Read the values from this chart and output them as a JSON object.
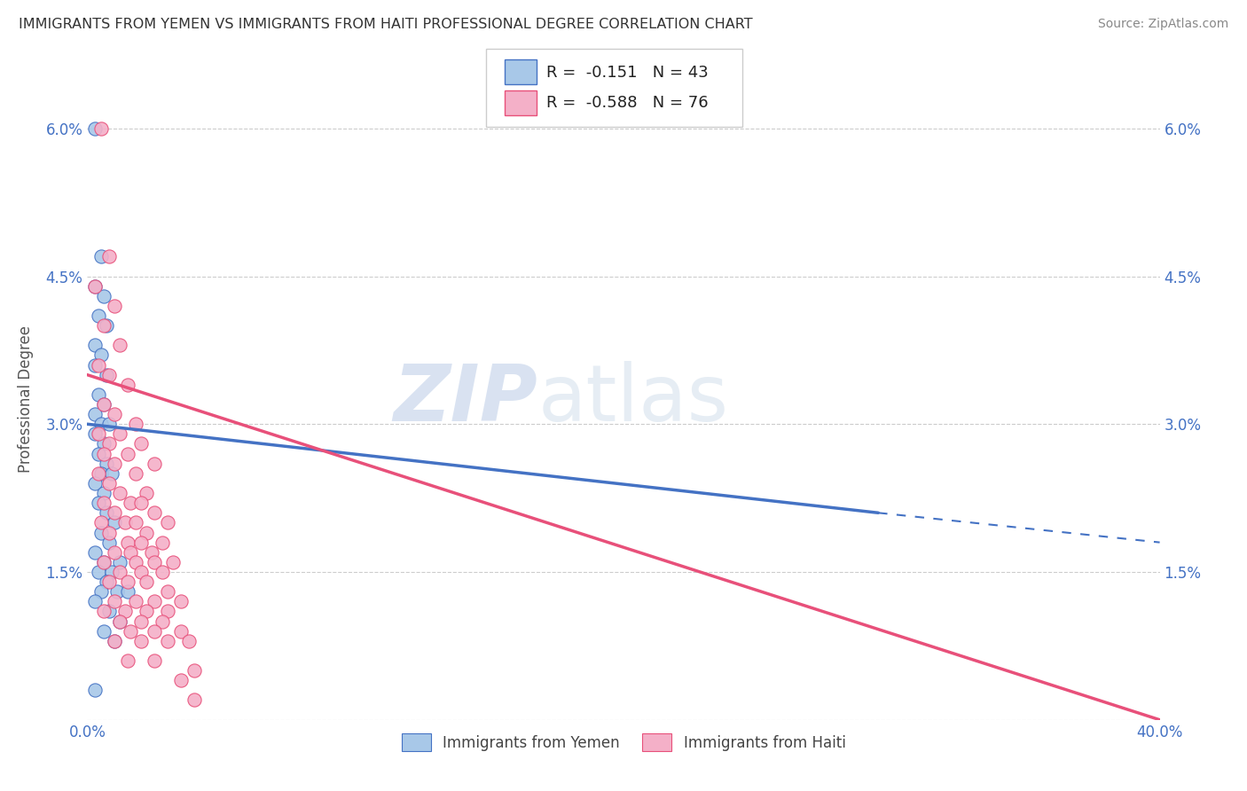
{
  "title": "IMMIGRANTS FROM YEMEN VS IMMIGRANTS FROM HAITI PROFESSIONAL DEGREE CORRELATION CHART",
  "source": "Source: ZipAtlas.com",
  "ylabel": "Professional Degree",
  "legend_label1": "Immigrants from Yemen",
  "legend_label2": "Immigrants from Haiti",
  "R1": -0.151,
  "N1": 43,
  "R2": -0.588,
  "N2": 76,
  "color_yemen": "#a8c8e8",
  "color_haiti": "#f4b0c8",
  "trendline_color_yemen": "#4472c4",
  "trendline_color_haiti": "#e8507a",
  "xlim": [
    0.0,
    0.4
  ],
  "ylim": [
    0.0,
    0.065
  ],
  "xticks": [
    0.0,
    0.05,
    0.1,
    0.15,
    0.2,
    0.25,
    0.3,
    0.35,
    0.4
  ],
  "yticks": [
    0.0,
    0.015,
    0.03,
    0.045,
    0.06
  ],
  "watermark_zip": "ZIP",
  "watermark_atlas": "atlas",
  "background_color": "#ffffff",
  "scatter_yemen": [
    [
      0.003,
      0.06
    ],
    [
      0.005,
      0.047
    ],
    [
      0.003,
      0.044
    ],
    [
      0.006,
      0.043
    ],
    [
      0.004,
      0.041
    ],
    [
      0.007,
      0.04
    ],
    [
      0.003,
      0.038
    ],
    [
      0.005,
      0.037
    ],
    [
      0.003,
      0.036
    ],
    [
      0.007,
      0.035
    ],
    [
      0.004,
      0.033
    ],
    [
      0.006,
      0.032
    ],
    [
      0.003,
      0.031
    ],
    [
      0.005,
      0.03
    ],
    [
      0.008,
      0.03
    ],
    [
      0.003,
      0.029
    ],
    [
      0.006,
      0.028
    ],
    [
      0.004,
      0.027
    ],
    [
      0.007,
      0.026
    ],
    [
      0.005,
      0.025
    ],
    [
      0.009,
      0.025
    ],
    [
      0.003,
      0.024
    ],
    [
      0.006,
      0.023
    ],
    [
      0.004,
      0.022
    ],
    [
      0.007,
      0.021
    ],
    [
      0.01,
      0.02
    ],
    [
      0.005,
      0.019
    ],
    [
      0.008,
      0.018
    ],
    [
      0.003,
      0.017
    ],
    [
      0.006,
      0.016
    ],
    [
      0.012,
      0.016
    ],
    [
      0.004,
      0.015
    ],
    [
      0.009,
      0.015
    ],
    [
      0.007,
      0.014
    ],
    [
      0.005,
      0.013
    ],
    [
      0.011,
      0.013
    ],
    [
      0.015,
      0.013
    ],
    [
      0.003,
      0.012
    ],
    [
      0.008,
      0.011
    ],
    [
      0.012,
      0.01
    ],
    [
      0.006,
      0.009
    ],
    [
      0.01,
      0.008
    ],
    [
      0.003,
      0.003
    ]
  ],
  "scatter_haiti": [
    [
      0.005,
      0.06
    ],
    [
      0.008,
      0.047
    ],
    [
      0.003,
      0.044
    ],
    [
      0.01,
      0.042
    ],
    [
      0.006,
      0.04
    ],
    [
      0.012,
      0.038
    ],
    [
      0.004,
      0.036
    ],
    [
      0.008,
      0.035
    ],
    [
      0.015,
      0.034
    ],
    [
      0.006,
      0.032
    ],
    [
      0.01,
      0.031
    ],
    [
      0.018,
      0.03
    ],
    [
      0.004,
      0.029
    ],
    [
      0.012,
      0.029
    ],
    [
      0.008,
      0.028
    ],
    [
      0.02,
      0.028
    ],
    [
      0.006,
      0.027
    ],
    [
      0.015,
      0.027
    ],
    [
      0.01,
      0.026
    ],
    [
      0.025,
      0.026
    ],
    [
      0.004,
      0.025
    ],
    [
      0.018,
      0.025
    ],
    [
      0.008,
      0.024
    ],
    [
      0.012,
      0.023
    ],
    [
      0.022,
      0.023
    ],
    [
      0.006,
      0.022
    ],
    [
      0.016,
      0.022
    ],
    [
      0.02,
      0.022
    ],
    [
      0.01,
      0.021
    ],
    [
      0.025,
      0.021
    ],
    [
      0.005,
      0.02
    ],
    [
      0.014,
      0.02
    ],
    [
      0.018,
      0.02
    ],
    [
      0.03,
      0.02
    ],
    [
      0.008,
      0.019
    ],
    [
      0.022,
      0.019
    ],
    [
      0.015,
      0.018
    ],
    [
      0.02,
      0.018
    ],
    [
      0.028,
      0.018
    ],
    [
      0.01,
      0.017
    ],
    [
      0.016,
      0.017
    ],
    [
      0.024,
      0.017
    ],
    [
      0.006,
      0.016
    ],
    [
      0.018,
      0.016
    ],
    [
      0.025,
      0.016
    ],
    [
      0.032,
      0.016
    ],
    [
      0.012,
      0.015
    ],
    [
      0.02,
      0.015
    ],
    [
      0.028,
      0.015
    ],
    [
      0.008,
      0.014
    ],
    [
      0.015,
      0.014
    ],
    [
      0.022,
      0.014
    ],
    [
      0.03,
      0.013
    ],
    [
      0.01,
      0.012
    ],
    [
      0.018,
      0.012
    ],
    [
      0.025,
      0.012
    ],
    [
      0.035,
      0.012
    ],
    [
      0.006,
      0.011
    ],
    [
      0.014,
      0.011
    ],
    [
      0.022,
      0.011
    ],
    [
      0.03,
      0.011
    ],
    [
      0.012,
      0.01
    ],
    [
      0.02,
      0.01
    ],
    [
      0.028,
      0.01
    ],
    [
      0.016,
      0.009
    ],
    [
      0.025,
      0.009
    ],
    [
      0.035,
      0.009
    ],
    [
      0.01,
      0.008
    ],
    [
      0.02,
      0.008
    ],
    [
      0.03,
      0.008
    ],
    [
      0.038,
      0.008
    ],
    [
      0.015,
      0.006
    ],
    [
      0.025,
      0.006
    ],
    [
      0.04,
      0.005
    ],
    [
      0.035,
      0.004
    ],
    [
      0.04,
      0.002
    ]
  ],
  "trendline_yemen_solid": {
    "x_start": 0.0,
    "x_end": 0.295,
    "y_start": 0.03,
    "y_end": 0.021
  },
  "trendline_yemen_dashed": {
    "x_start": 0.295,
    "x_end": 0.4,
    "y_start": 0.021,
    "y_end": 0.018
  },
  "trendline_haiti": {
    "x_start": 0.0,
    "x_end": 0.4,
    "y_start": 0.035,
    "y_end": 0.0
  }
}
